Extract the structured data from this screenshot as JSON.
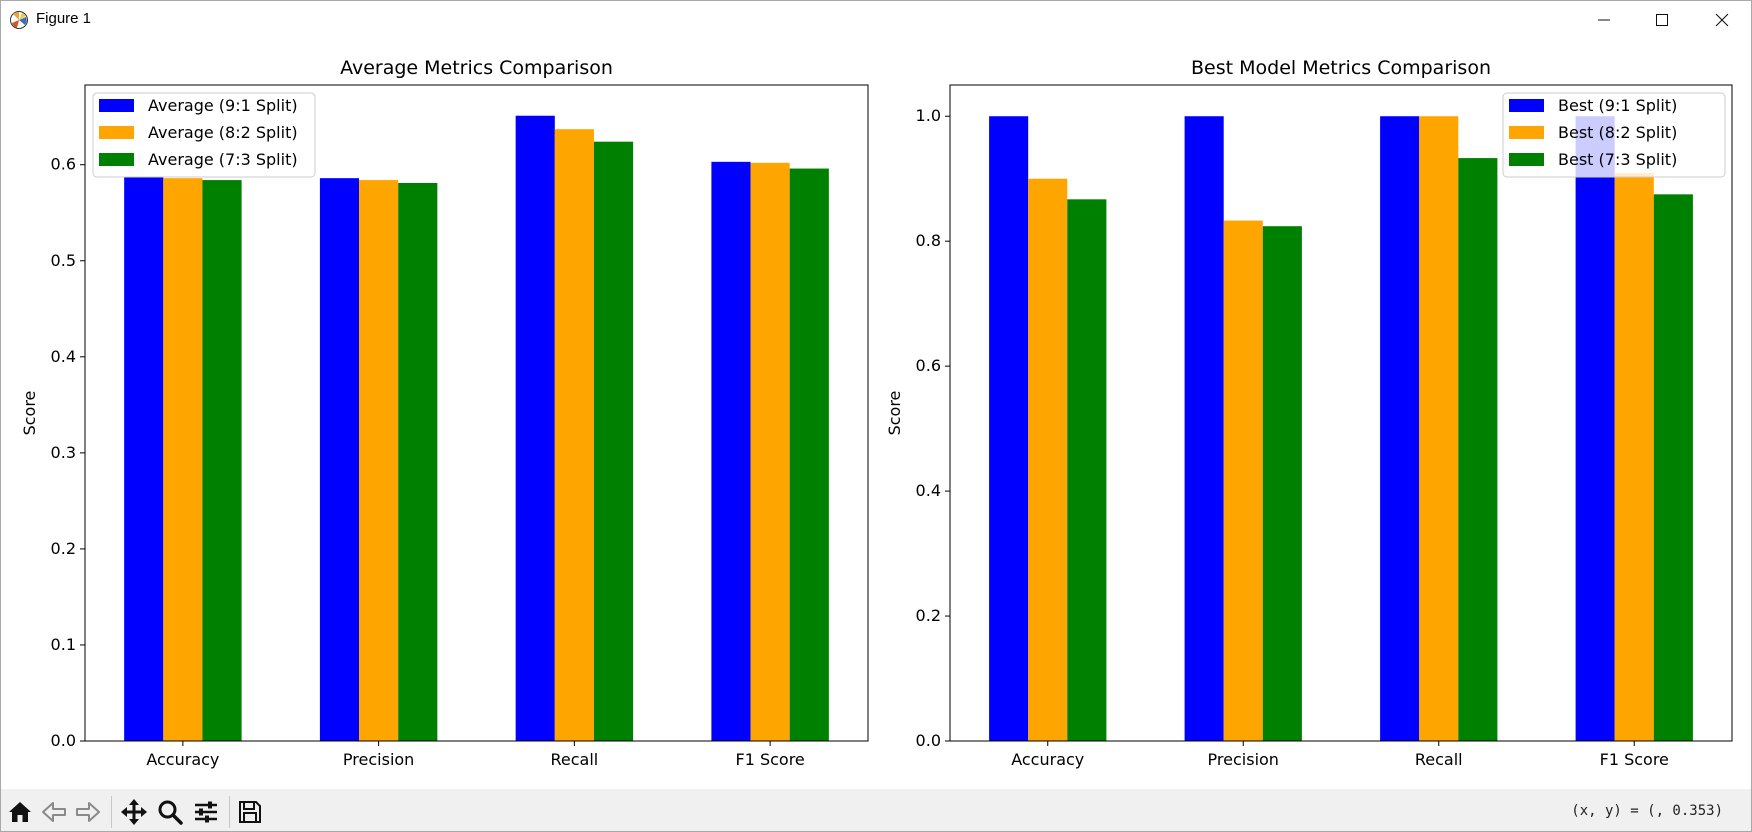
{
  "window": {
    "title": "Figure 1",
    "app_icon": "matplotlib-logo"
  },
  "controls": {
    "minimize_icon": "minimize-icon",
    "maximize_icon": "maximize-icon",
    "close_icon": "close-icon"
  },
  "toolbar": {
    "buttons": [
      {
        "name": "home-button",
        "icon": "home-icon"
      },
      {
        "name": "back-button",
        "icon": "arrow-left-icon"
      },
      {
        "name": "forward-button",
        "icon": "arrow-right-icon"
      },
      {
        "name": "pan-button",
        "icon": "move-icon"
      },
      {
        "name": "zoom-button",
        "icon": "magnifier-icon"
      },
      {
        "name": "configure-subplots-button",
        "icon": "sliders-icon"
      },
      {
        "name": "save-button",
        "icon": "floppy-disk-icon"
      }
    ],
    "coordinates": "(x, y) = (, 0.353)"
  },
  "colors": {
    "series1": "#0000ff",
    "series2": "#ffa500",
    "series3": "#008000"
  },
  "chart_data": [
    {
      "type": "bar",
      "title": "Average Metrics Comparison",
      "xlabel": "",
      "ylabel": "Score",
      "categories": [
        "Accuracy",
        "Precision",
        "Recall",
        "F1 Score"
      ],
      "ylim": [
        0,
        0.683
      ],
      "yticks": [
        0.0,
        0.1,
        0.2,
        0.3,
        0.4,
        0.5,
        0.6
      ],
      "ytick_labels": [
        "0.0",
        "0.1",
        "0.2",
        "0.3",
        "0.4",
        "0.5",
        "0.6"
      ],
      "series": [
        {
          "name": "Average (9:1 Split)",
          "color": "#0000ff",
          "values": [
            0.587,
            0.586,
            0.651,
            0.603
          ]
        },
        {
          "name": "Average (8:2 Split)",
          "color": "#ffa500",
          "values": [
            0.586,
            0.584,
            0.637,
            0.602
          ]
        },
        {
          "name": "Average (7:3 Split)",
          "color": "#008000",
          "values": [
            0.584,
            0.581,
            0.624,
            0.596
          ]
        }
      ],
      "legend": "top-left",
      "grid": false
    },
    {
      "type": "bar",
      "title": "Best Model Metrics Comparison",
      "xlabel": "",
      "ylabel": "Score",
      "categories": [
        "Accuracy",
        "Precision",
        "Recall",
        "F1 Score"
      ],
      "ylim": [
        0,
        1.05
      ],
      "yticks": [
        0.0,
        0.2,
        0.4,
        0.6,
        0.8,
        1.0
      ],
      "ytick_labels": [
        "0.0",
        "0.2",
        "0.4",
        "0.6",
        "0.8",
        "1.0"
      ],
      "series": [
        {
          "name": "Best (9:1 Split)",
          "color": "#0000ff",
          "values": [
            1.0,
            1.0,
            1.0,
            1.0
          ]
        },
        {
          "name": "Best (8:2 Split)",
          "color": "#ffa500",
          "values": [
            0.9,
            0.833,
            1.0,
            0.909
          ]
        },
        {
          "name": "Best (7:3 Split)",
          "color": "#008000",
          "values": [
            0.867,
            0.824,
            0.933,
            0.875
          ]
        }
      ],
      "legend": "top-right",
      "grid": false
    }
  ]
}
